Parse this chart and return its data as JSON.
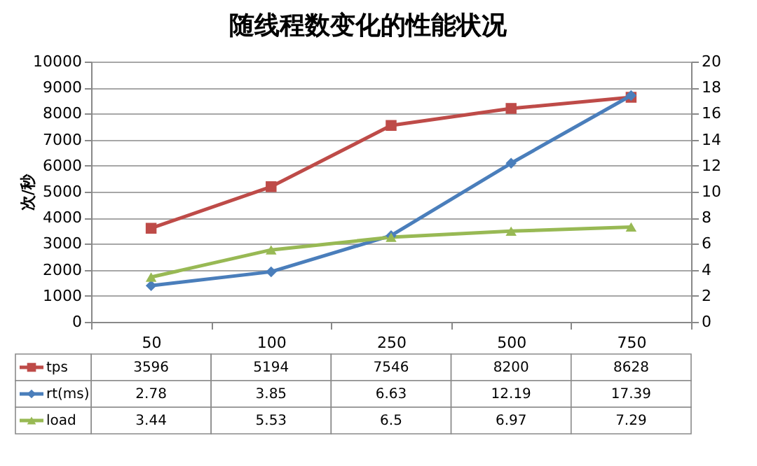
{
  "chart_data": {
    "type": "line",
    "title": "随线程数变化的性能状况",
    "ylabel": "次/秒",
    "categories": [
      "50",
      "100",
      "250",
      "500",
      "750"
    ],
    "series": [
      {
        "name": "tps",
        "color": "#be4b48",
        "marker": "square",
        "values": [
          3596,
          5194,
          7546,
          8200,
          8628
        ]
      },
      {
        "name": "rt(ms)",
        "color": "#4a7ebb",
        "marker": "diamond",
        "axis": "y2",
        "values": [
          2.78,
          3.85,
          6.63,
          12.19,
          17.39
        ]
      },
      {
        "name": "load",
        "color": "#98b954",
        "marker": "triangle",
        "axis": "y2",
        "values": [
          3.44,
          5.53,
          6.5,
          6.97,
          7.29
        ]
      }
    ],
    "ylim": [
      0,
      10000
    ],
    "yticks": [
      0,
      1000,
      2000,
      3000,
      4000,
      5000,
      6000,
      7000,
      8000,
      9000,
      10000
    ],
    "y2lim": [
      0,
      20
    ],
    "y2ticks": [
      0,
      2,
      4,
      6,
      8,
      10,
      12,
      14,
      16,
      18,
      20
    ],
    "grid": "y",
    "legend": "bottom",
    "data_labels": true
  }
}
